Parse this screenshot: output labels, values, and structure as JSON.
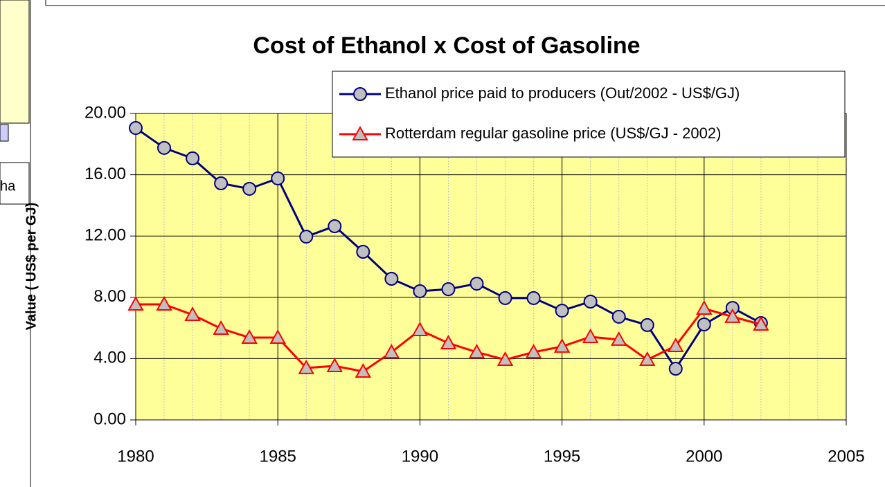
{
  "fragment_text": "ha",
  "chart_data": {
    "type": "line",
    "title": "Cost of Ethanol x Cost of Gasoline",
    "ylabel": "Value ( US$ per GJ)",
    "x": [
      1980,
      1981,
      1982,
      1983,
      1984,
      1985,
      1986,
      1987,
      1988,
      1989,
      1990,
      1991,
      1992,
      1993,
      1994,
      1995,
      1996,
      1997,
      1998,
      1999,
      2000,
      2001,
      2002
    ],
    "series": [
      {
        "name": "Ethanol price paid to producers (Out/2002 - US$/GJ)",
        "color": "#000080",
        "marker": "circle",
        "values": [
          19.05,
          17.75,
          17.07,
          15.44,
          15.08,
          15.76,
          11.96,
          12.64,
          10.97,
          9.21,
          8.4,
          8.53,
          8.89,
          7.95,
          7.95,
          7.13,
          7.72,
          6.73,
          6.19,
          3.34,
          6.23,
          7.31,
          6.32
        ]
      },
      {
        "name": "Rotterdam regular gasoline price (US$/GJ - 2002)",
        "color": "#ff0000",
        "marker": "triangle",
        "values": [
          7.54,
          7.54,
          6.86,
          5.96,
          5.37,
          5.37,
          3.39,
          3.52,
          3.16,
          4.42,
          5.87,
          5.01,
          4.42,
          3.93,
          4.42,
          4.79,
          5.42,
          5.24,
          3.93,
          4.83,
          7.27,
          6.73,
          6.23
        ]
      }
    ],
    "xlim": [
      1980,
      2005
    ],
    "xticks": [
      1980,
      1985,
      1990,
      1995,
      2000,
      2005
    ],
    "ylim": [
      0,
      20
    ],
    "yticks": [
      {
        "value": 0,
        "label": "0.00"
      },
      {
        "value": 4,
        "label": "4.00"
      },
      {
        "value": 8,
        "label": "8.00"
      },
      {
        "value": 12,
        "label": "12.00"
      },
      {
        "value": 16,
        "label": "16.00"
      },
      {
        "value": 20,
        "label": "20.00"
      }
    ],
    "grid": true,
    "minor_x_grid": 1,
    "plot_background": "#ffff99",
    "legend": "top-right"
  }
}
